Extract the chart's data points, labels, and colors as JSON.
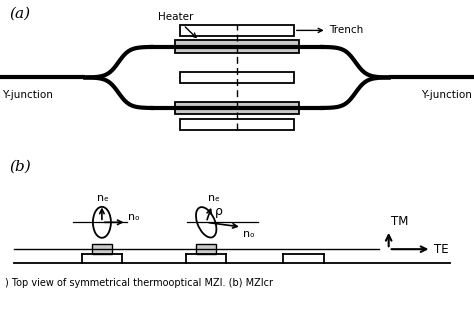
{
  "bg_color": "#ffffff",
  "fig_width": 4.74,
  "fig_height": 3.1,
  "label_a": "(a)",
  "label_b": "(b)",
  "heater_label": "Heater",
  "trench_label": "Trench",
  "yjunc_left": "Y-junction",
  "yjunc_right": "Y-junction",
  "tm_label": "TM",
  "te_label": "TE",
  "ne_label": "nₑ",
  "no_label": "nₒ",
  "rho_label": "ρ",
  "caption": ") Top view of symmetrical thermooptical MZI. (b) MZIcr"
}
